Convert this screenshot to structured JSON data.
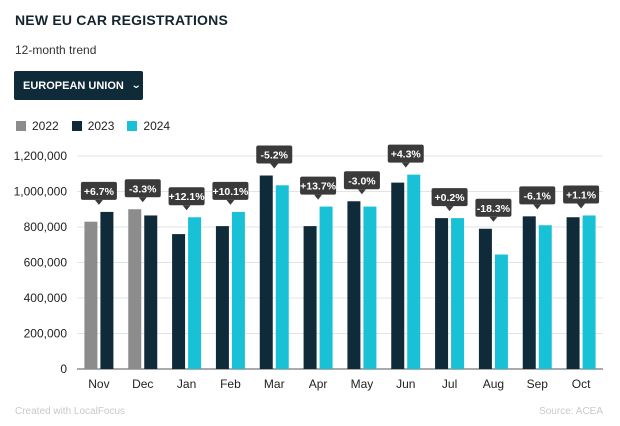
{
  "title": "NEW EU CAR REGISTRATIONS",
  "subtitle": "12-month trend",
  "region_select": {
    "label": "EUROPEAN UNION"
  },
  "legend": [
    {
      "name": "2022",
      "color": "#8c8c8c"
    },
    {
      "name": "2023",
      "color": "#0f2a39"
    },
    {
      "name": "2024",
      "color": "#19c1d6"
    }
  ],
  "footer": {
    "left": "Created with LocalFocus",
    "right": "Source: ACEA"
  },
  "chart_data": {
    "type": "bar",
    "categories": [
      "Nov",
      "Dec",
      "Jan",
      "Feb",
      "Mar",
      "Apr",
      "May",
      "Jun",
      "Jul",
      "Aug",
      "Sep",
      "Oct"
    ],
    "series": [
      {
        "name": "2022",
        "values": [
          830000,
          900000,
          null,
          null,
          null,
          null,
          null,
          null,
          null,
          null,
          null,
          null
        ]
      },
      {
        "name": "2023",
        "values": [
          885000,
          865000,
          760000,
          805000,
          1090000,
          805000,
          945000,
          1050000,
          850000,
          790000,
          860000,
          855000
        ]
      },
      {
        "name": "2024",
        "values": [
          null,
          null,
          855000,
          885000,
          1035000,
          915000,
          915000,
          1095000,
          850000,
          645000,
          810000,
          865000
        ]
      }
    ],
    "annotations": [
      "+6.7%",
      "-3.3%",
      "+12.1%",
      "+10.1%",
      "-5.2%",
      "+13.7%",
      "-3.0%",
      "+4.3%",
      "+0.2%",
      "-18.3%",
      "-6.1%",
      "+1.1%"
    ],
    "yticks": [
      "0",
      "200,000",
      "400,000",
      "600,000",
      "800,000",
      "1,000,000",
      "1,200,000"
    ],
    "ylim": [
      0,
      1200000
    ],
    "grid": true
  }
}
